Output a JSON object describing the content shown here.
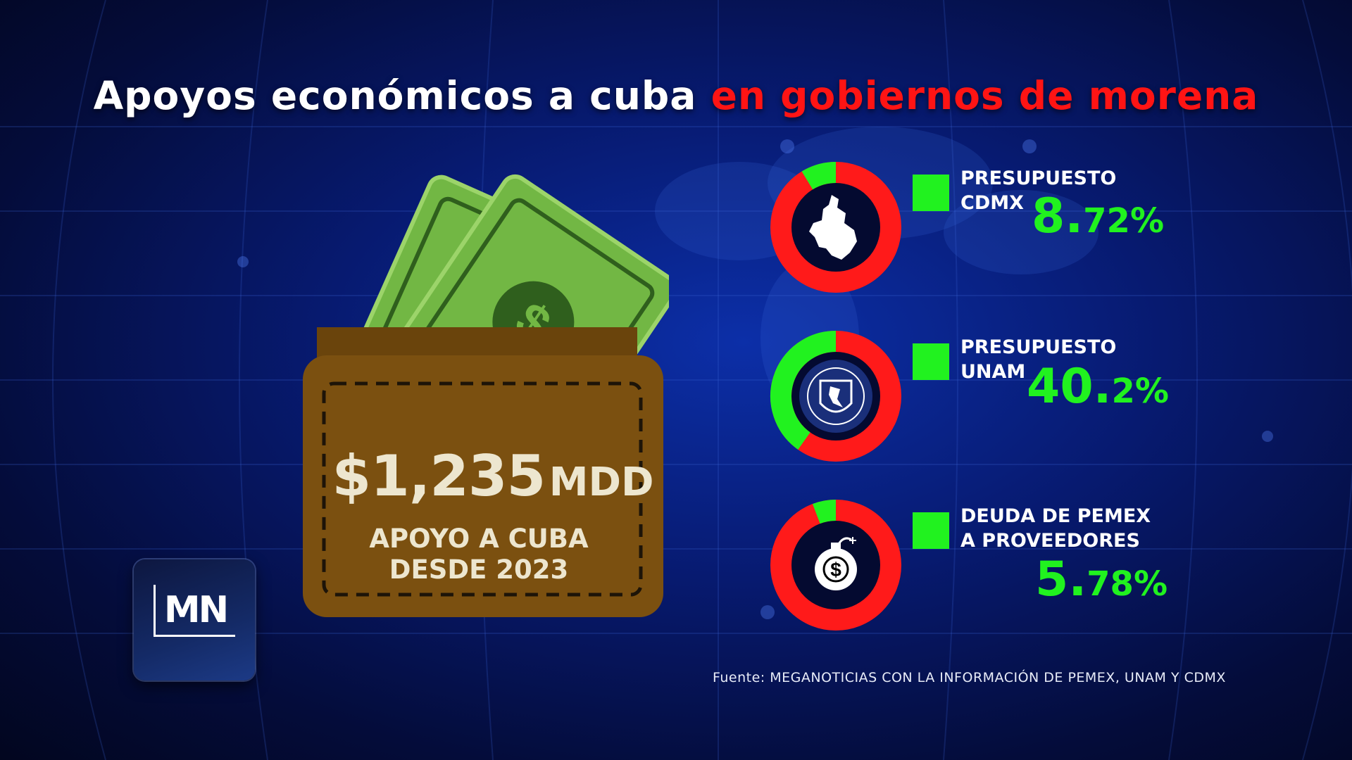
{
  "title": {
    "part1": "Apoyos económicos a cuba",
    "part2": "en gobiernos de morena"
  },
  "wallet": {
    "amount": "$1,235",
    "unit": "MDD",
    "caption_line1": "APOYO A CUBA",
    "caption_line2": "DESDE 2023",
    "icon": "wallet-with-money-icon"
  },
  "logo": {
    "text": "MN"
  },
  "colors": {
    "highlight": "#21f21f",
    "remainder": "#ff1a1a",
    "accent_title": "#ff1414",
    "wallet": "#7b5010",
    "bill": "#72b744"
  },
  "chart_data": {
    "type": "pie",
    "charts": [
      {
        "label_line1": "PRESUPUESTO",
        "label_line2": "CDMX",
        "value": 8.72,
        "value_int": "8.",
        "value_dec": "72",
        "unit": "%",
        "icon": "cdmx-map-icon"
      },
      {
        "label_line1": "PRESUPUESTO",
        "label_line2": "UNAM",
        "value": 40.2,
        "value_int": "40.",
        "value_dec": "2",
        "unit": "%",
        "icon": "unam-seal-icon"
      },
      {
        "label_line1": "DEUDA DE PEMEX",
        "label_line2": "A PROVEEDORES",
        "value": 5.78,
        "value_int": "5.",
        "value_dec": "78",
        "unit": "%",
        "icon": "money-bomb-icon"
      }
    ]
  },
  "source": "Fuente: MEGANOTICIAS CON LA INFORMACIÓN DE PEMEX, UNAM Y CDMX"
}
